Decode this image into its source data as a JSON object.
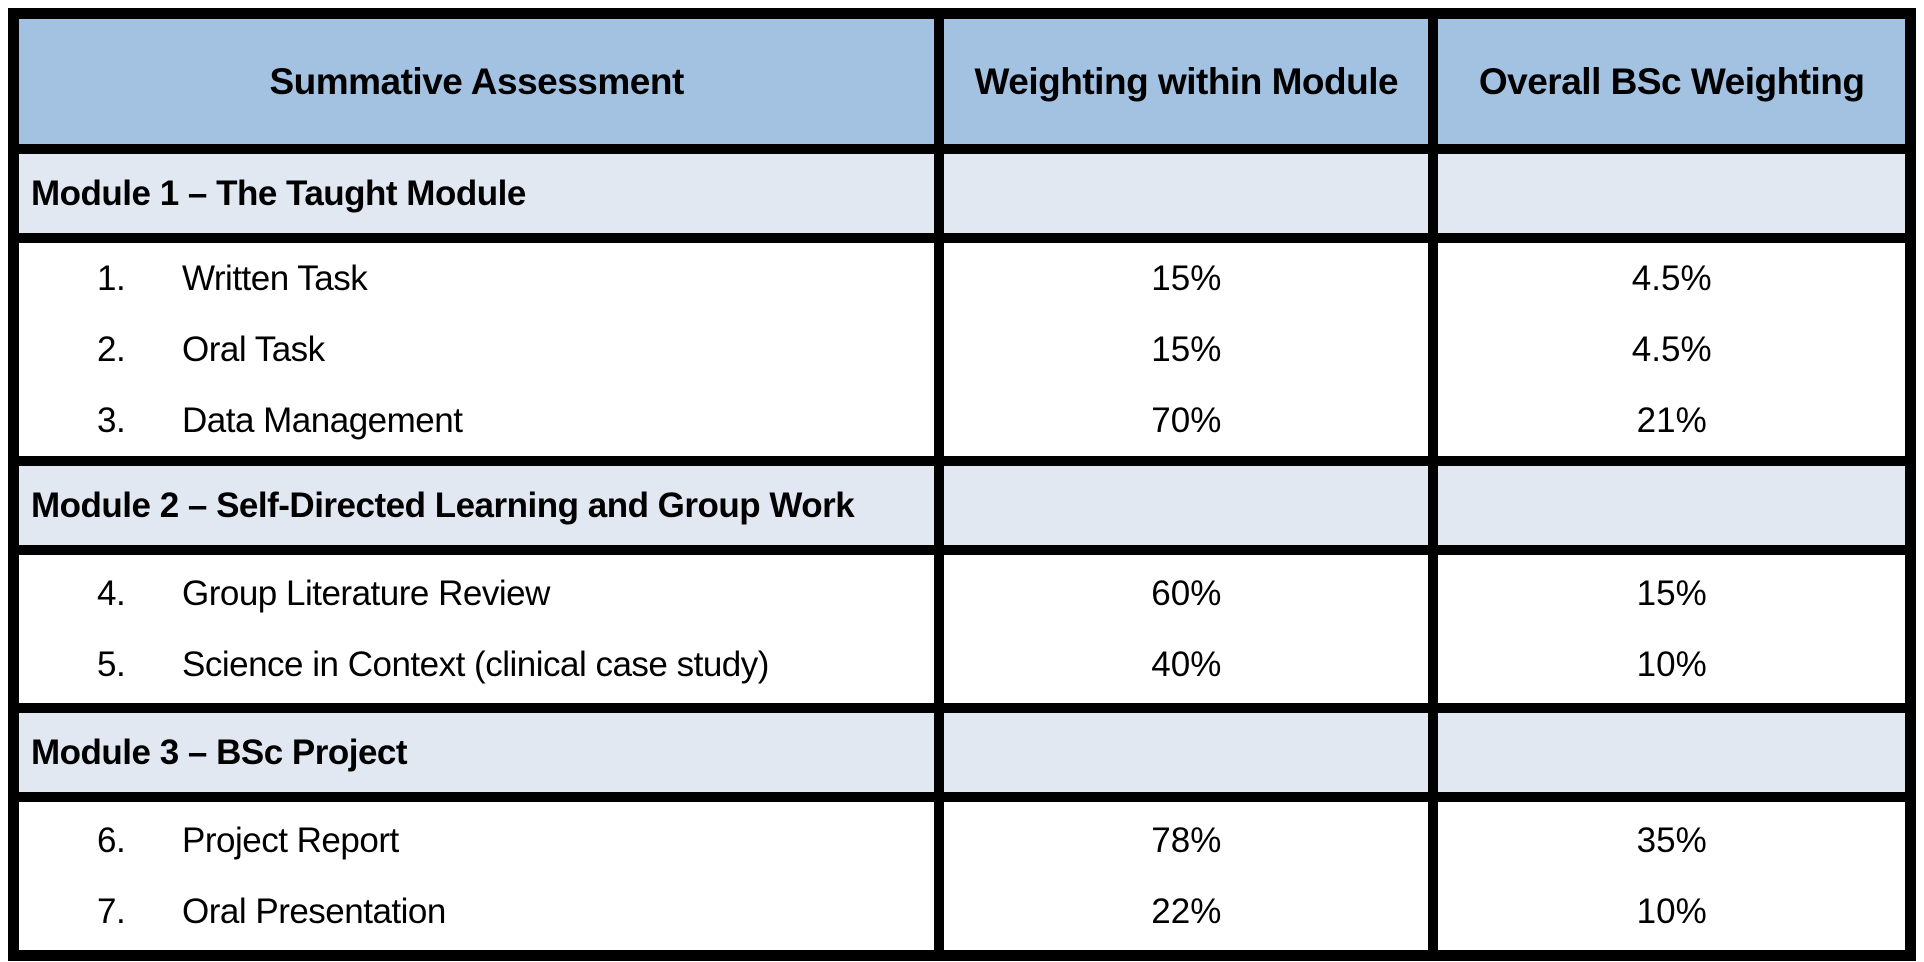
{
  "table": {
    "columns": [
      "Summative Assessment",
      "Weighting within Module",
      "Overall BSc Weighting"
    ],
    "sections": [
      {
        "title": "Module 1 – The Taught Module",
        "items": [
          {
            "num": "1.",
            "label": "Written Task",
            "module_weighting": "15%",
            "overall_weighting": "4.5%"
          },
          {
            "num": "2.",
            "label": "Oral Task",
            "module_weighting": "15%",
            "overall_weighting": "4.5%"
          },
          {
            "num": "3.",
            "label": "Data Management",
            "module_weighting": "70%",
            "overall_weighting": "21%"
          }
        ]
      },
      {
        "title": "Module 2 – Self-Directed Learning and Group Work",
        "items": [
          {
            "num": "4.",
            "label": "Group Literature Review",
            "module_weighting": "60%",
            "overall_weighting": "15%"
          },
          {
            "num": "5.",
            "label": "Science in Context (clinical case study)",
            "module_weighting": "40%",
            "overall_weighting": "10%"
          }
        ]
      },
      {
        "title": "Module 3 – BSc Project",
        "items": [
          {
            "num": "6.",
            "label": "Project Report",
            "module_weighting": "78%",
            "overall_weighting": "35%"
          },
          {
            "num": "7.",
            "label": "Oral Presentation",
            "module_weighting": "22%",
            "overall_weighting": "10%"
          }
        ]
      }
    ],
    "colors": {
      "header_bg": "#a3c1e1",
      "section_bg": "#e1e8f2",
      "body_bg": "#ffffff",
      "border": "#000000",
      "text": "#000000"
    }
  }
}
